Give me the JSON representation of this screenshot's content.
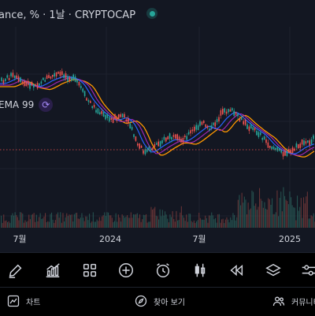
{
  "header": {
    "title": "ance, % · 1날 · CRYPTOCAP"
  },
  "chart": {
    "ema_label": "EMA 99",
    "x_ticks": [
      "7월",
      "2024",
      "7월",
      "2025"
    ],
    "colors": {
      "up": "#26a69a",
      "down": "#ef5350",
      "ema_fast": "#2962ff",
      "ema_mid": "#9c27b0",
      "ema_slow": "#ff9800",
      "price_line": "#ef5350",
      "grid": "#1e222d",
      "volume_down": "#7a3b3b",
      "volume_up": "#2a5f5a"
    }
  },
  "toolbar": {
    "tools": [
      {
        "icon": "pencil-icon"
      },
      {
        "icon": "indicators-icon"
      },
      {
        "icon": "grid-icon"
      },
      {
        "icon": "add-icon"
      },
      {
        "icon": "alarm-icon"
      },
      {
        "icon": "candles-icon"
      },
      {
        "icon": "replay-icon"
      },
      {
        "icon": "layers-icon"
      },
      {
        "icon": "settings-sliders-icon"
      }
    ]
  },
  "bottom_nav": {
    "chart_label": "차트",
    "explore_label": "찾아 보기",
    "community_label": "커뮤니티"
  }
}
